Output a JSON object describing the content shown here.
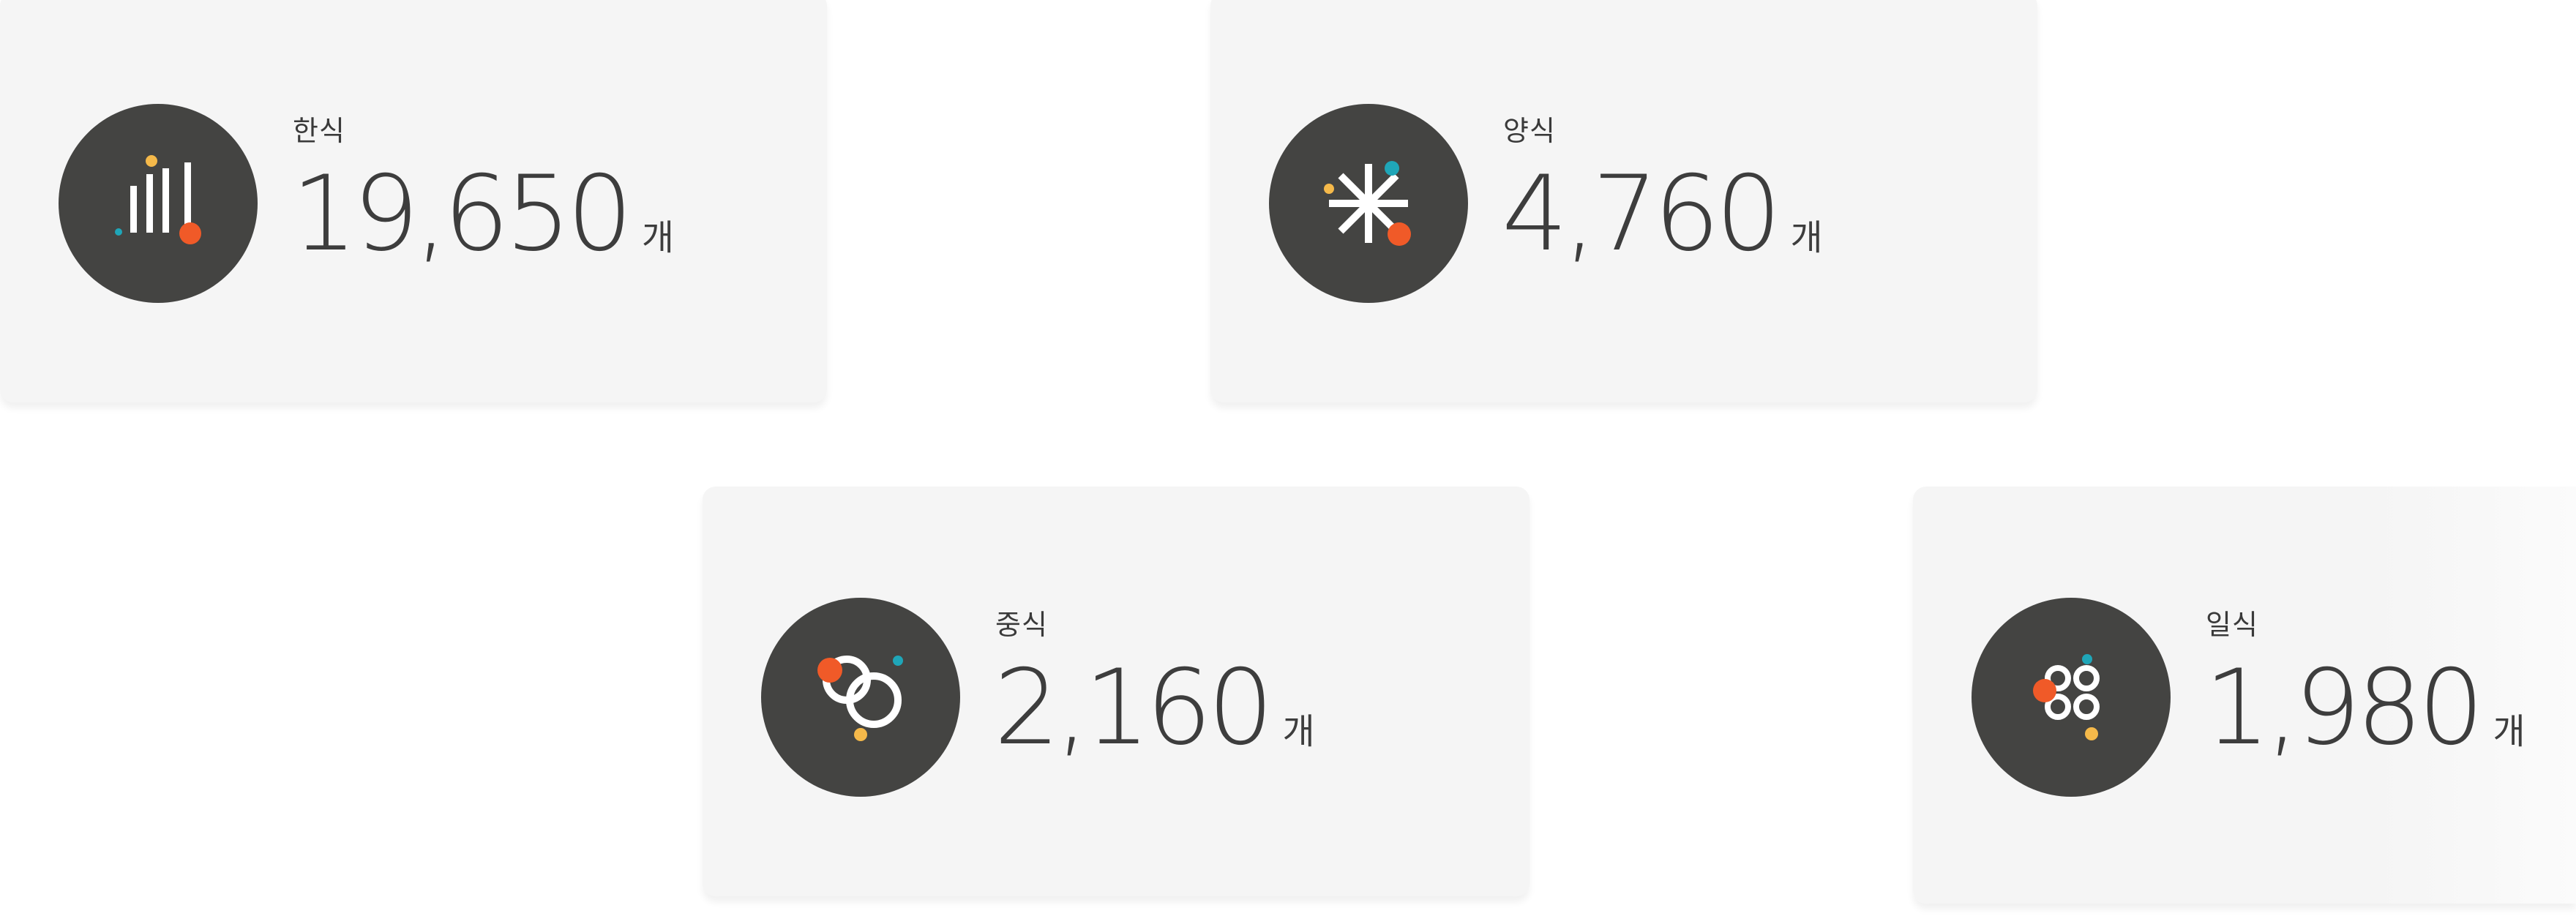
{
  "cards": [
    {
      "label": "한식",
      "value": "19,650",
      "unit": "개",
      "icon": "bar-lines-icon"
    },
    {
      "label": "양식",
      "value": "4,760",
      "unit": "개",
      "icon": "asterisk-icon"
    },
    {
      "label": "중식",
      "value": "2,160",
      "unit": "개",
      "icon": "linked-rings-icon"
    },
    {
      "label": "일식",
      "value": "1,980",
      "unit": "개",
      "icon": "four-rings-icon"
    }
  ],
  "colors": {
    "card_bg": "#f5f5f5",
    "circle_bg": "#444442",
    "accent_red": "#f05a28",
    "accent_yellow": "#f5b94a",
    "accent_teal": "#1fa6b8",
    "icon_white": "#ffffff",
    "text": "#3d3d3d"
  }
}
